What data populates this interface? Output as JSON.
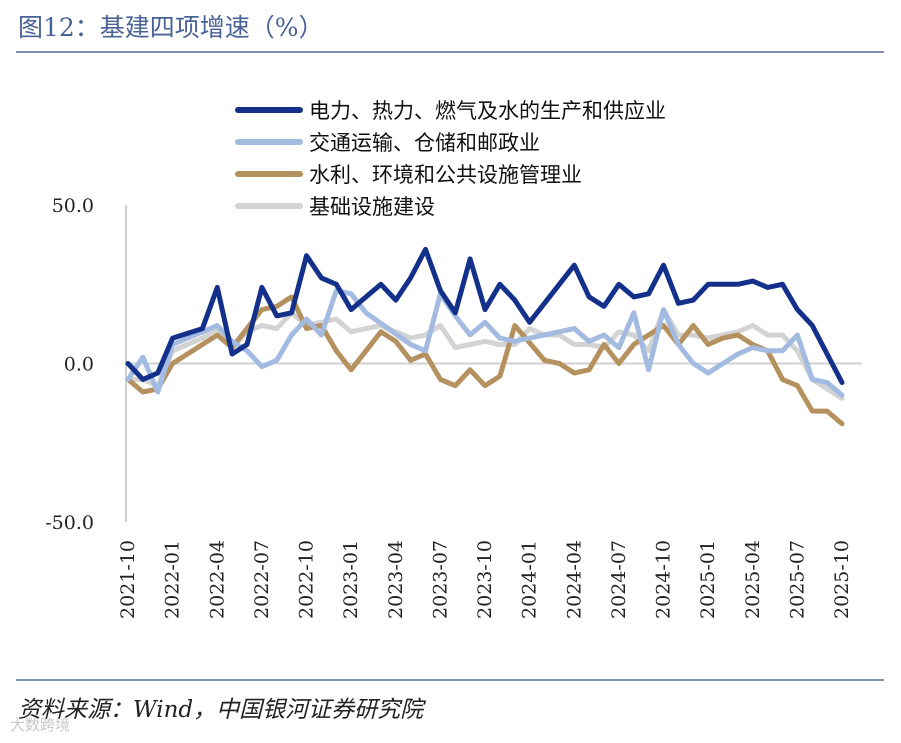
{
  "header": {
    "title": "图12：基建四项增速（%）"
  },
  "footer": {
    "source": "资料来源：Wind，中国银河证券研究院",
    "watermark": "大数跨境"
  },
  "chart_data": {
    "type": "line",
    "title": "图12：基建四项增速（%）",
    "ylim": [
      -50,
      50
    ],
    "y_ticks": [
      50,
      0,
      -50
    ],
    "y_tick_labels": [
      "50.0",
      "0.0",
      "-50.0"
    ],
    "x_tick_labels": [
      "2021-10",
      "2022-01",
      "2022-04",
      "2022-07",
      "2022-10",
      "2023-01",
      "2023-04",
      "2023-07",
      "2023-10",
      "2024-01",
      "2024-04",
      "2024-07",
      "2024-10",
      "2025-01",
      "2025-04",
      "2025-07",
      "2025-10"
    ],
    "x": [
      "2021-10",
      "2021-11",
      "2021-12",
      "2022-01",
      "2022-02",
      "2022-03",
      "2022-04",
      "2022-05",
      "2022-06",
      "2022-07",
      "2022-08",
      "2022-09",
      "2022-10",
      "2022-11",
      "2022-12",
      "2023-01",
      "2023-02",
      "2023-03",
      "2023-04",
      "2023-05",
      "2023-06",
      "2023-07",
      "2023-08",
      "2023-09",
      "2023-10",
      "2023-11",
      "2023-12",
      "2024-01",
      "2024-02",
      "2024-03",
      "2024-04",
      "2024-05",
      "2024-06",
      "2024-07",
      "2024-08",
      "2024-09",
      "2024-10",
      "2024-11",
      "2024-12",
      "2025-01",
      "2025-02",
      "2025-03",
      "2025-04",
      "2025-05",
      "2025-06",
      "2025-07",
      "2025-08",
      "2025-09",
      "2025-10"
    ],
    "series": [
      {
        "name": "电力、热力、燃气及水的生产和供应业",
        "color": "#13308a",
        "values": [
          0,
          -5,
          -3,
          8,
          null,
          11,
          24,
          3,
          6,
          24,
          15,
          16,
          34,
          27,
          25,
          17,
          21,
          25,
          20,
          27,
          36,
          23,
          16,
          33,
          17,
          25,
          20,
          13,
          null,
          null,
          31,
          21,
          18,
          25,
          21,
          22,
          31,
          19,
          20,
          25,
          25,
          25,
          26,
          24,
          25,
          17,
          12,
          3,
          -6
        ]
      },
      {
        "name": "交通运输、仓储和邮政业",
        "color": "#a3bbe1",
        "values": [
          -5,
          2,
          -9,
          6,
          null,
          10,
          12,
          7,
          4,
          -1,
          1,
          9,
          14,
          9,
          23,
          22,
          16,
          null,
          null,
          6,
          4,
          22,
          15,
          9,
          13,
          8,
          7,
          8,
          null,
          null,
          11,
          7,
          9,
          5,
          16,
          -2,
          17,
          6,
          0,
          -3,
          null,
          3,
          5,
          4,
          4,
          9,
          -5,
          -6,
          -10
        ]
      },
      {
        "name": "水利、环境和公共设施管理业",
        "color": "#b5915f",
        "values": [
          -5,
          -9,
          -8,
          0,
          null,
          6,
          9,
          5,
          11,
          17,
          18,
          21,
          11,
          12,
          4,
          -2,
          4,
          10,
          7,
          1,
          3,
          -5,
          -7,
          -2,
          -7,
          -4,
          12,
          null,
          1,
          0,
          -3,
          -2,
          6,
          0,
          6,
          null,
          12,
          6,
          12,
          6,
          8,
          9,
          6,
          4,
          -5,
          -7,
          -15,
          -15,
          -19
        ]
      },
      {
        "name": "基础设施建设",
        "color": "#d3d3d3",
        "values": [
          -5,
          -5,
          -7,
          4,
          null,
          8,
          11,
          5,
          10,
          12,
          11,
          16,
          12,
          13,
          14,
          10,
          11,
          12,
          10,
          8,
          9,
          12,
          5,
          6,
          7,
          6,
          6,
          11,
          9,
          9,
          6,
          6,
          5,
          10,
          9,
          4,
          17,
          9,
          9,
          8,
          9,
          10,
          12,
          9,
          9,
          4,
          -5,
          -8,
          -11
        ]
      }
    ]
  }
}
